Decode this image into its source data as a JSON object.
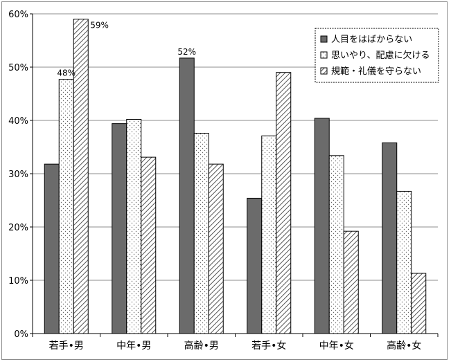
{
  "chart_data": {
    "type": "bar",
    "categories": [
      "若手•男",
      "中年•男",
      "高齢•男",
      "若手•女",
      "中年•女",
      "高齢•女"
    ],
    "series": [
      {
        "name": "人目をはばからない",
        "values": [
          31.8,
          39.4,
          51.7,
          25.4,
          40.4,
          35.8
        ],
        "pattern": "solid"
      },
      {
        "name": "思いやり、配慮に欠ける",
        "values": [
          47.7,
          40.2,
          37.6,
          37.1,
          33.4,
          26.7
        ],
        "pattern": "dots"
      },
      {
        "name": "規範・礼儀を守らない",
        "values": [
          59.0,
          33.1,
          31.8,
          49.0,
          19.2,
          11.3
        ],
        "pattern": "diagonal"
      }
    ],
    "data_labels": [
      {
        "series": 1,
        "category": 0,
        "text": "48%"
      },
      {
        "series": 2,
        "category": 0,
        "text": "59%"
      },
      {
        "series": 0,
        "category": 2,
        "text": "52%"
      }
    ],
    "yticks": [
      "0%",
      "10%",
      "20%",
      "30%",
      "40%",
      "50%",
      "60%"
    ],
    "ylim": [
      0,
      60
    ],
    "title": "",
    "xlabel": "",
    "ylabel": "",
    "grid": true,
    "legend_position": "top-right",
    "colors": {
      "solid": "#6b6b6b",
      "grid": "#8c8c8c",
      "axis": "#000000"
    }
  }
}
